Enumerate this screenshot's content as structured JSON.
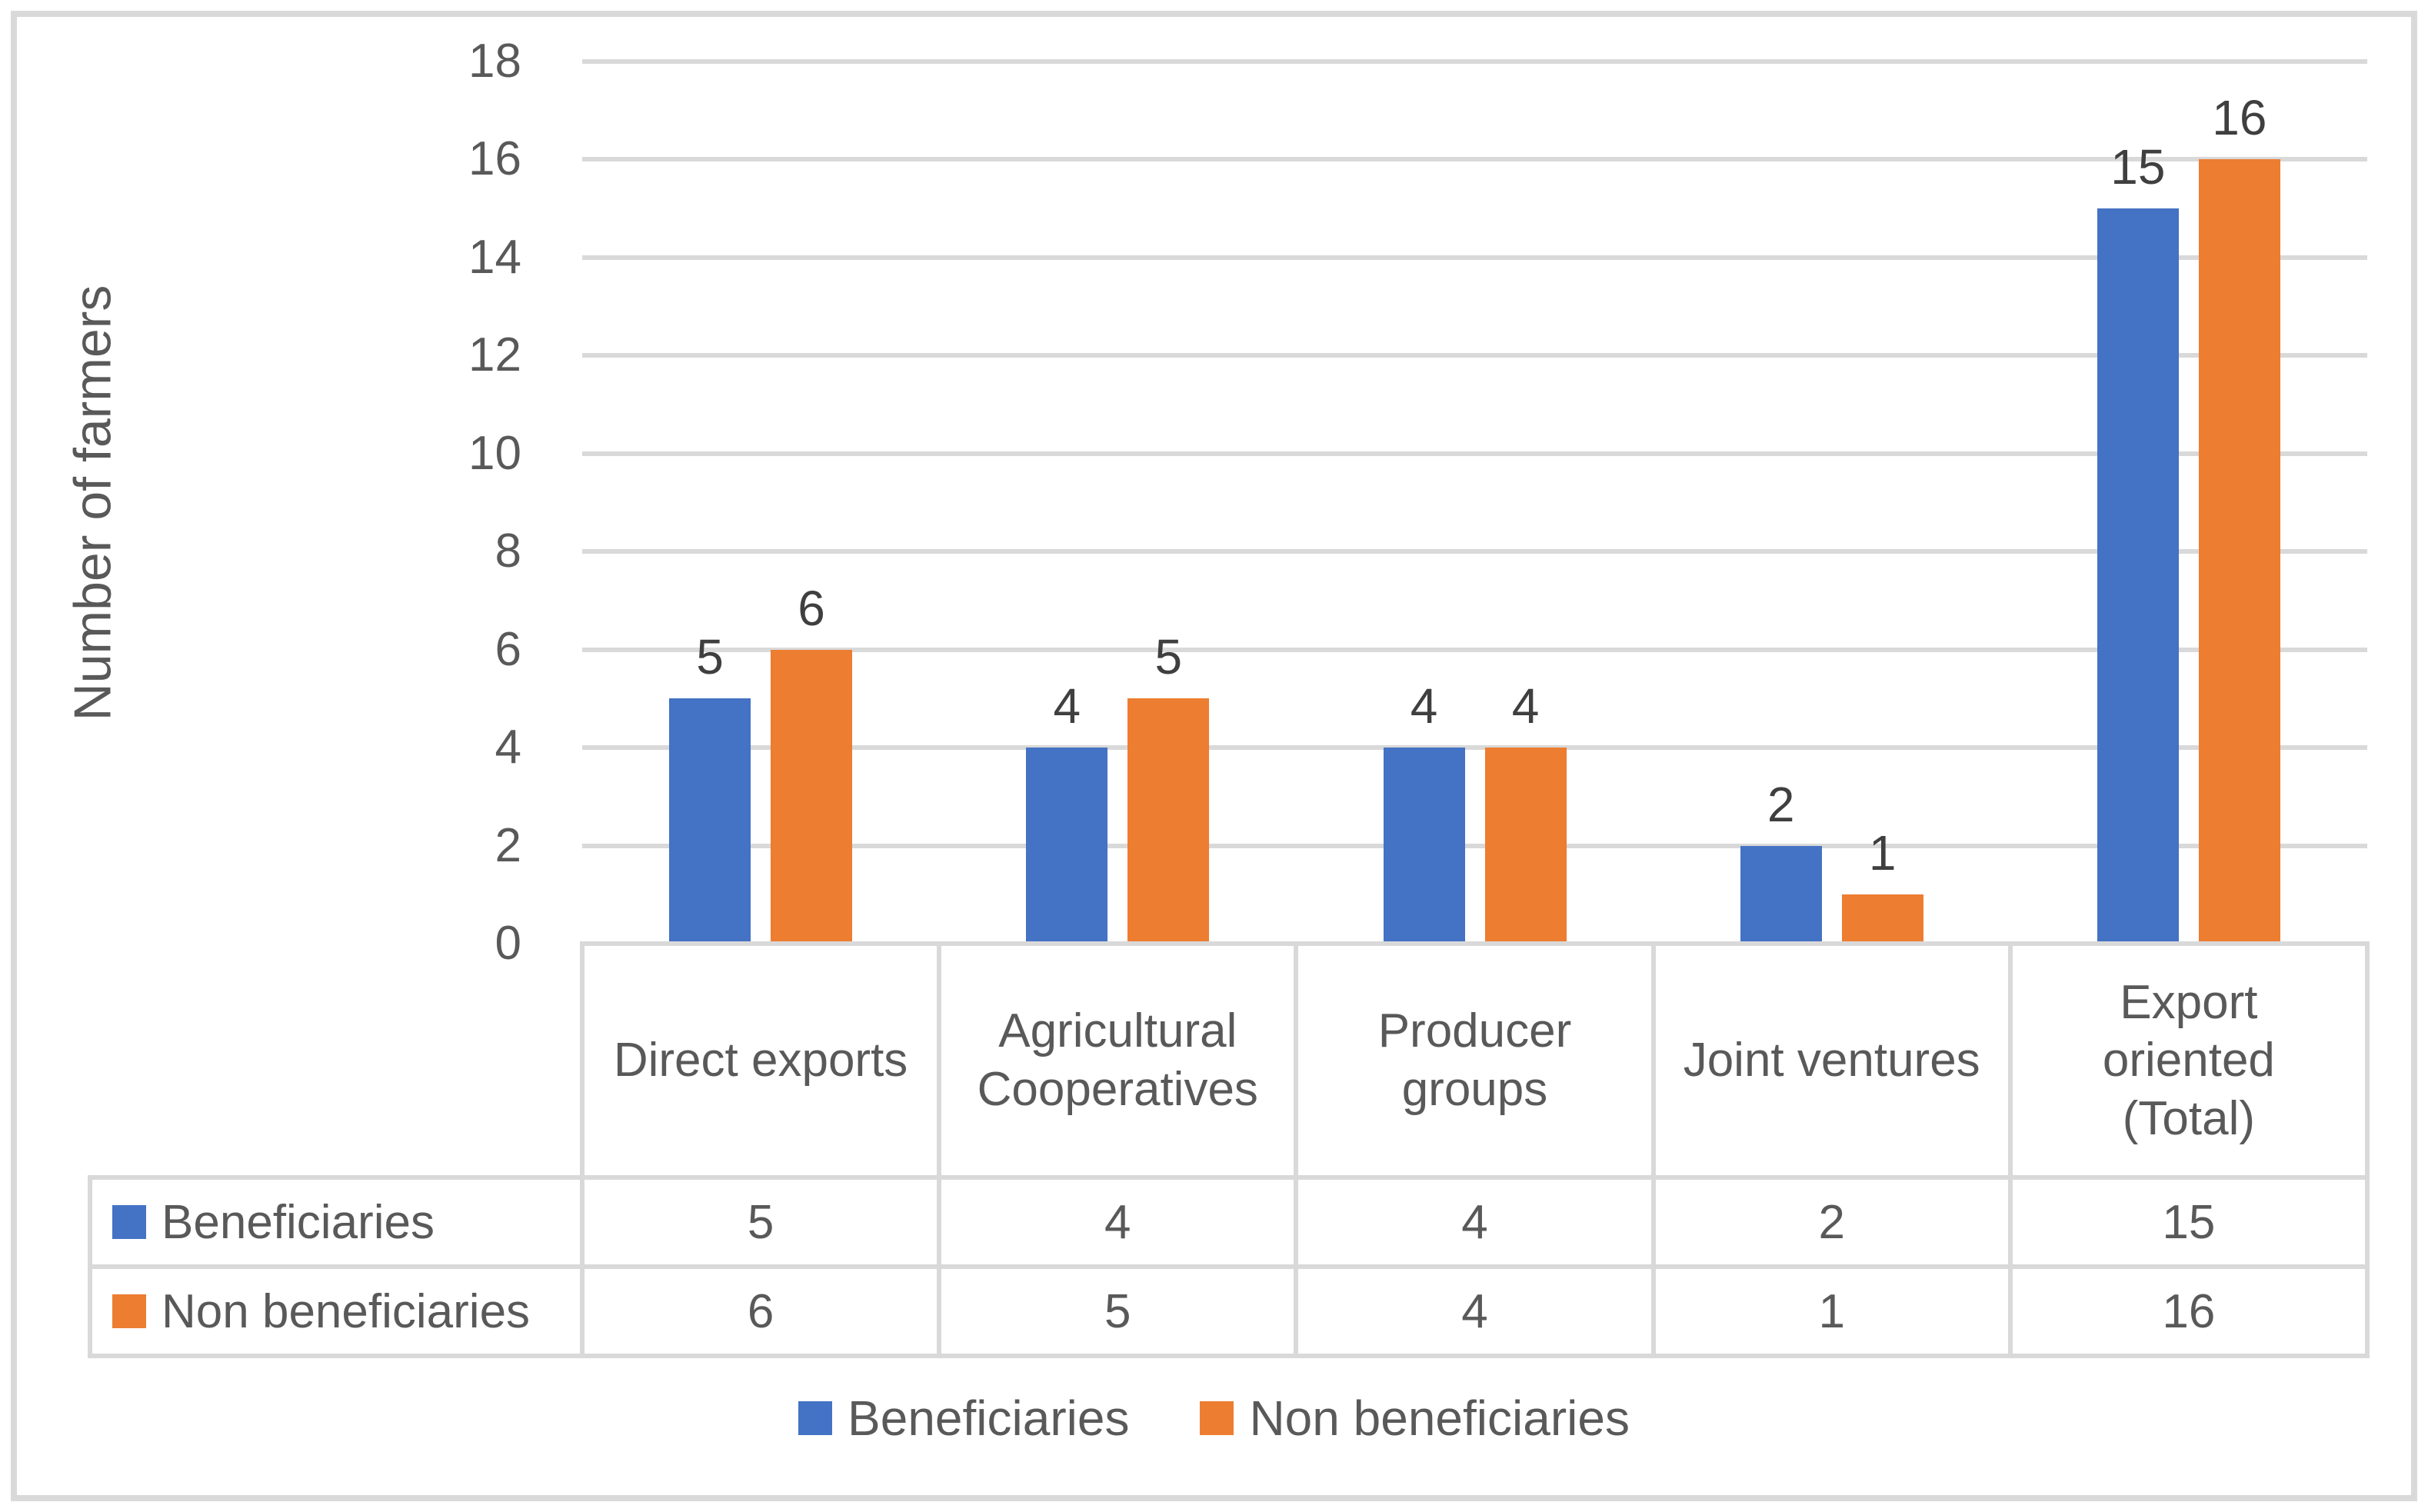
{
  "figure": {
    "background": "#ffffff",
    "border_color": "#d9d9d9"
  },
  "chart_data": {
    "type": "bar",
    "title": "",
    "xlabel": "",
    "ylabel": "Number of farmers",
    "categories": [
      "Direct exports",
      "Agricultural Cooperatives",
      "Producer groups",
      "Joint ventures",
      "Export oriented (Total)"
    ],
    "categories_display": [
      "Direct exports",
      "Agricultural\nCooperatives",
      "Producer\ngroups",
      "Joint ventures",
      "Export\noriented\n(Total)"
    ],
    "series": [
      {
        "name": "Beneficiaries",
        "color": "#4472C4",
        "values": [
          5,
          4,
          4,
          2,
          15
        ]
      },
      {
        "name": "Non beneficiaries",
        "color": "#ED7D31",
        "values": [
          6,
          5,
          4,
          1,
          16
        ]
      }
    ],
    "ylim": [
      0,
      18
    ],
    "ytick_step": 2,
    "yticks": [
      0,
      2,
      4,
      6,
      8,
      10,
      12,
      14,
      16,
      18
    ],
    "grid": true,
    "gridline_color": "#d9d9d9",
    "axis_text_color": "#595959",
    "data_label_color": "#3f3f3f",
    "data_labels_shown": true,
    "data_table_shown": true,
    "legend_position": "bottom"
  }
}
